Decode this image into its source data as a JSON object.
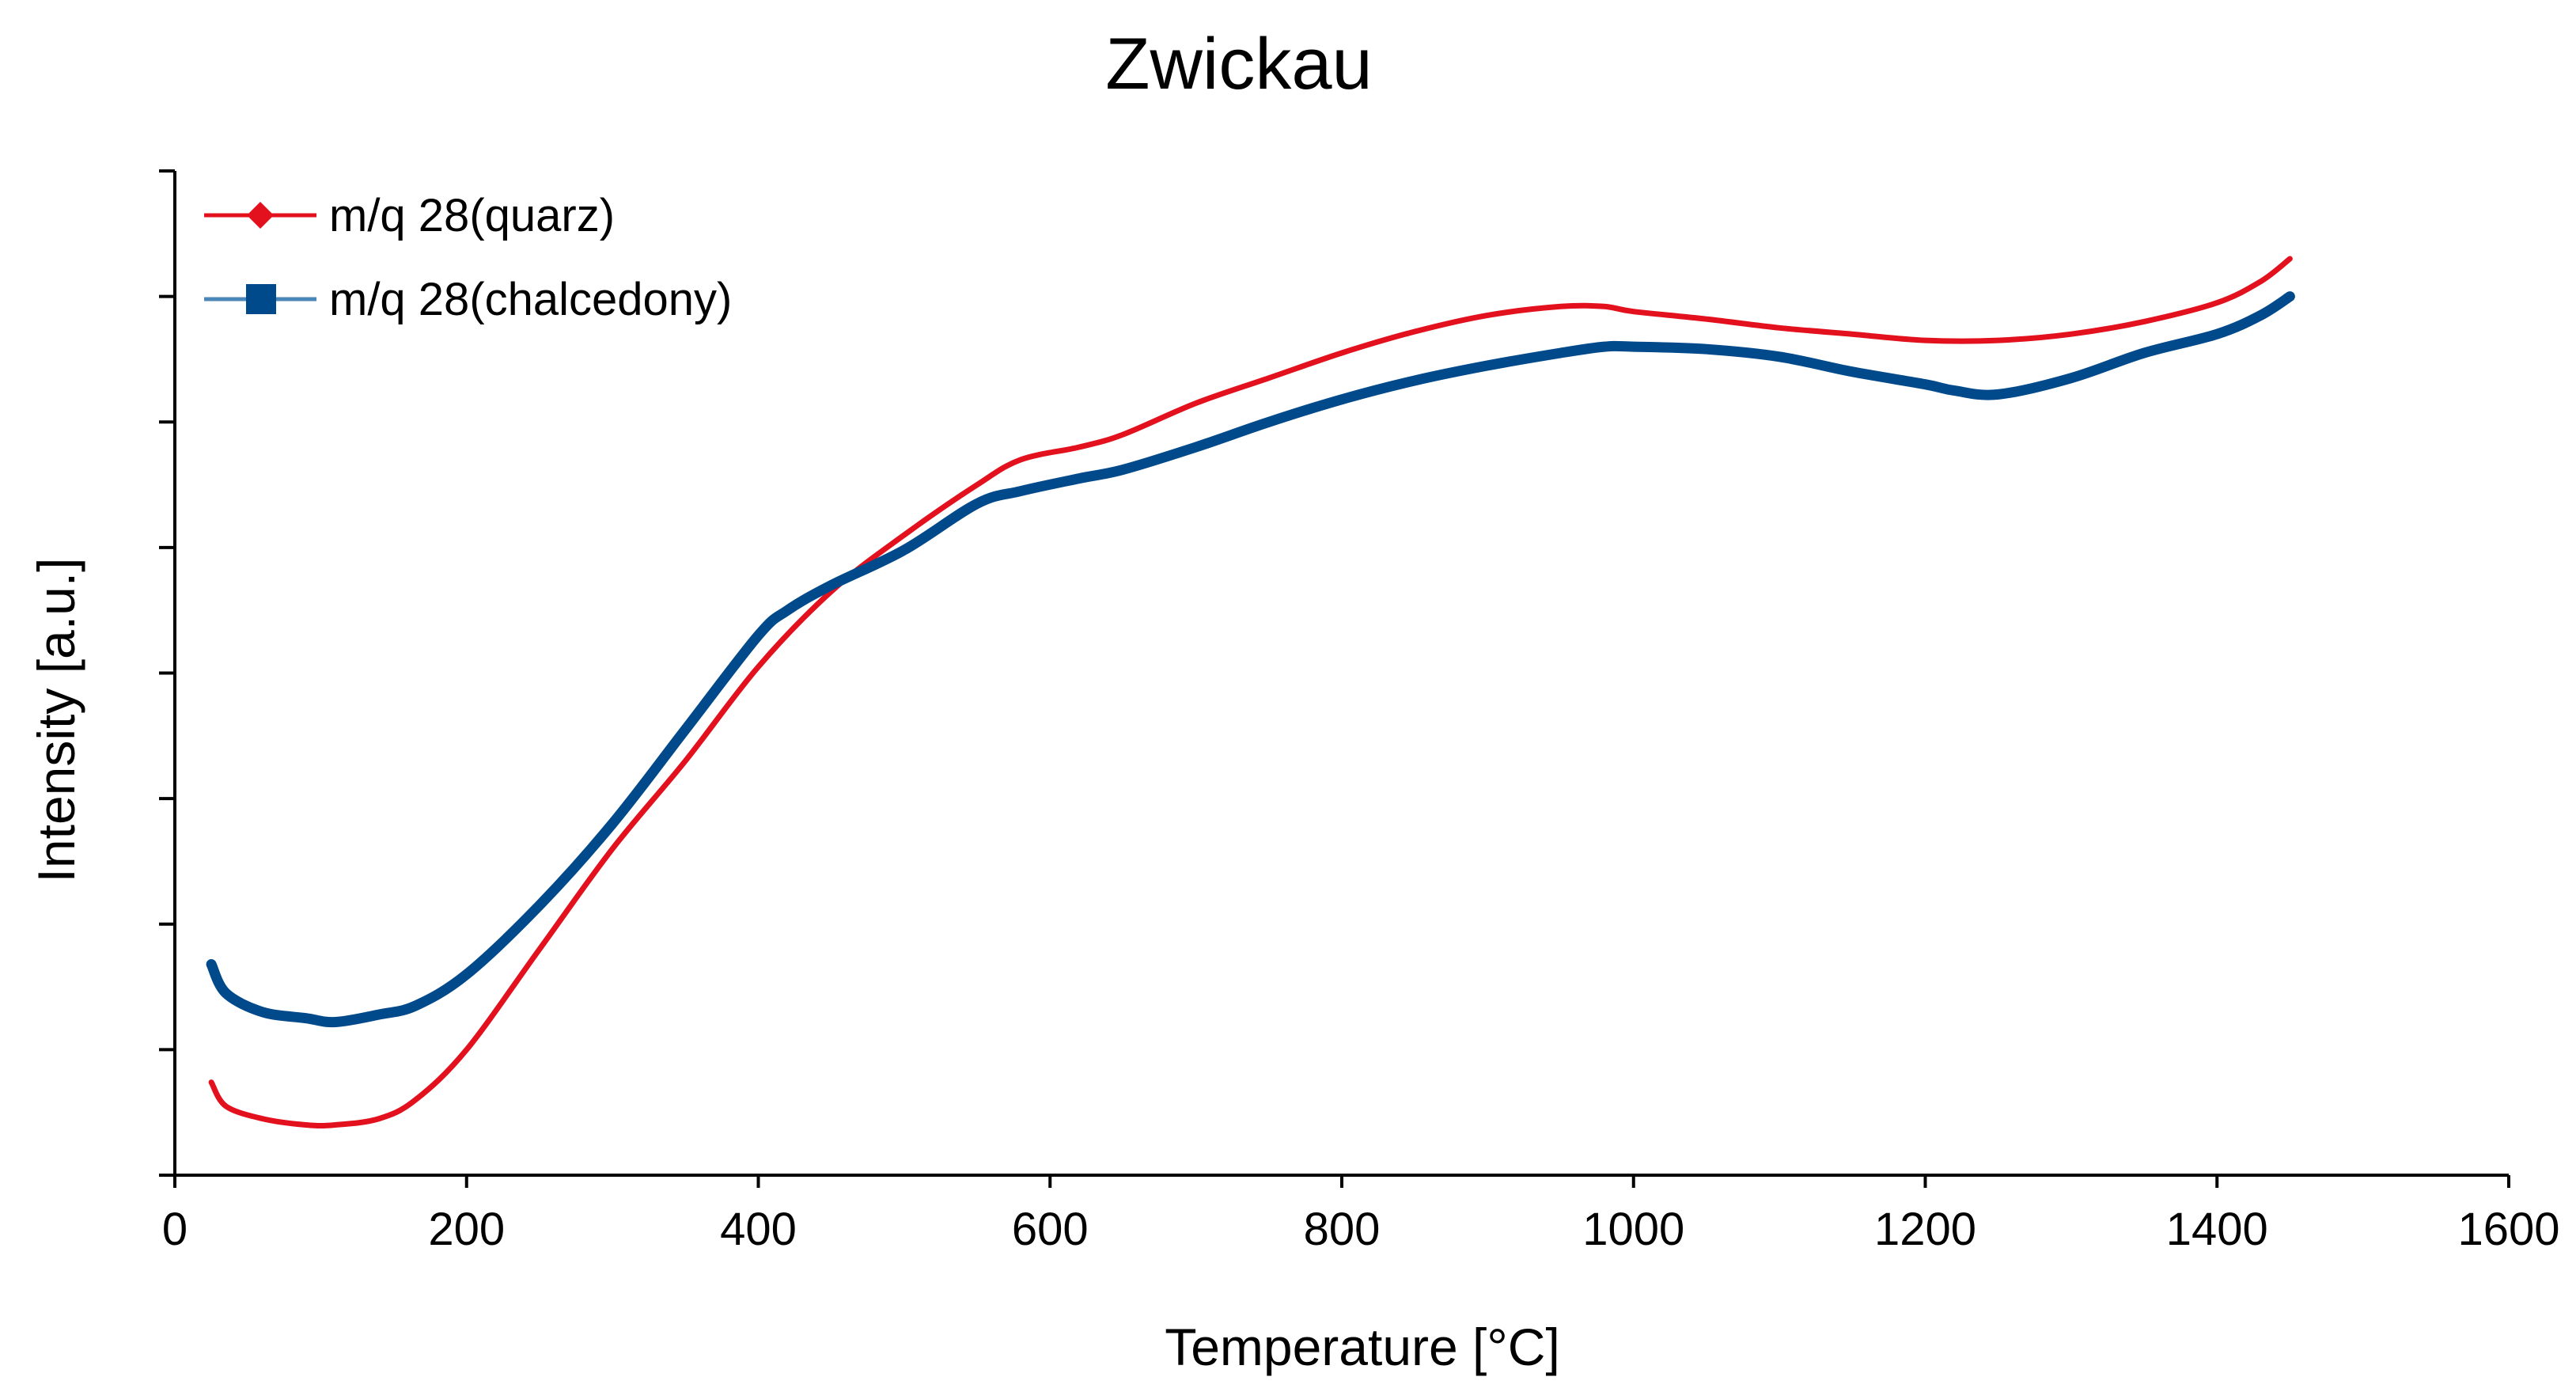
{
  "chart_data": {
    "type": "line",
    "title": "Zwickau",
    "xlabel": "Temperature [°C]",
    "ylabel": "Intensity [a.u.]",
    "xlim": [
      0,
      1600
    ],
    "ylim": [
      0,
      8
    ],
    "x_ticks": [
      0,
      200,
      400,
      600,
      800,
      1000,
      1200,
      1400,
      1600
    ],
    "y_tick_count": 8,
    "y_tick_labels_shown": false,
    "grid": false,
    "legend_position": "top-left",
    "series": [
      {
        "name": "m/q 28(quarz)",
        "color": "#e3101e",
        "marker": "diamond",
        "x": [
          25,
          35,
          60,
          90,
          110,
          140,
          165,
          200,
          250,
          300,
          350,
          400,
          450,
          500,
          550,
          580,
          620,
          650,
          700,
          750,
          800,
          850,
          900,
          950,
          980,
          1000,
          1050,
          1100,
          1150,
          1200,
          1250,
          1300,
          1350,
          1400,
          1430,
          1450
        ],
        "y": [
          0.74,
          0.55,
          0.45,
          0.4,
          0.4,
          0.45,
          0.6,
          1.0,
          1.8,
          2.6,
          3.3,
          4.05,
          4.65,
          5.1,
          5.5,
          5.7,
          5.8,
          5.9,
          6.15,
          6.35,
          6.55,
          6.72,
          6.85,
          6.92,
          6.92,
          6.88,
          6.82,
          6.75,
          6.7,
          6.65,
          6.65,
          6.7,
          6.8,
          6.95,
          7.12,
          7.3
        ]
      },
      {
        "name": "m/q 28(chalcedony)",
        "color": "#004a8c",
        "marker": "square",
        "x": [
          25,
          35,
          60,
          90,
          110,
          140,
          165,
          200,
          250,
          300,
          350,
          400,
          420,
          450,
          500,
          550,
          580,
          620,
          650,
          700,
          750,
          800,
          850,
          900,
          950,
          980,
          1000,
          1050,
          1100,
          1150,
          1200,
          1220,
          1250,
          1300,
          1350,
          1400,
          1430,
          1450
        ],
        "y": [
          1.68,
          1.45,
          1.3,
          1.25,
          1.22,
          1.28,
          1.35,
          1.6,
          2.15,
          2.8,
          3.55,
          4.3,
          4.5,
          4.7,
          4.98,
          5.35,
          5.45,
          5.55,
          5.62,
          5.8,
          6.0,
          6.18,
          6.33,
          6.45,
          6.55,
          6.6,
          6.6,
          6.58,
          6.52,
          6.4,
          6.3,
          6.25,
          6.22,
          6.35,
          6.55,
          6.7,
          6.85,
          7.0
        ]
      }
    ]
  }
}
